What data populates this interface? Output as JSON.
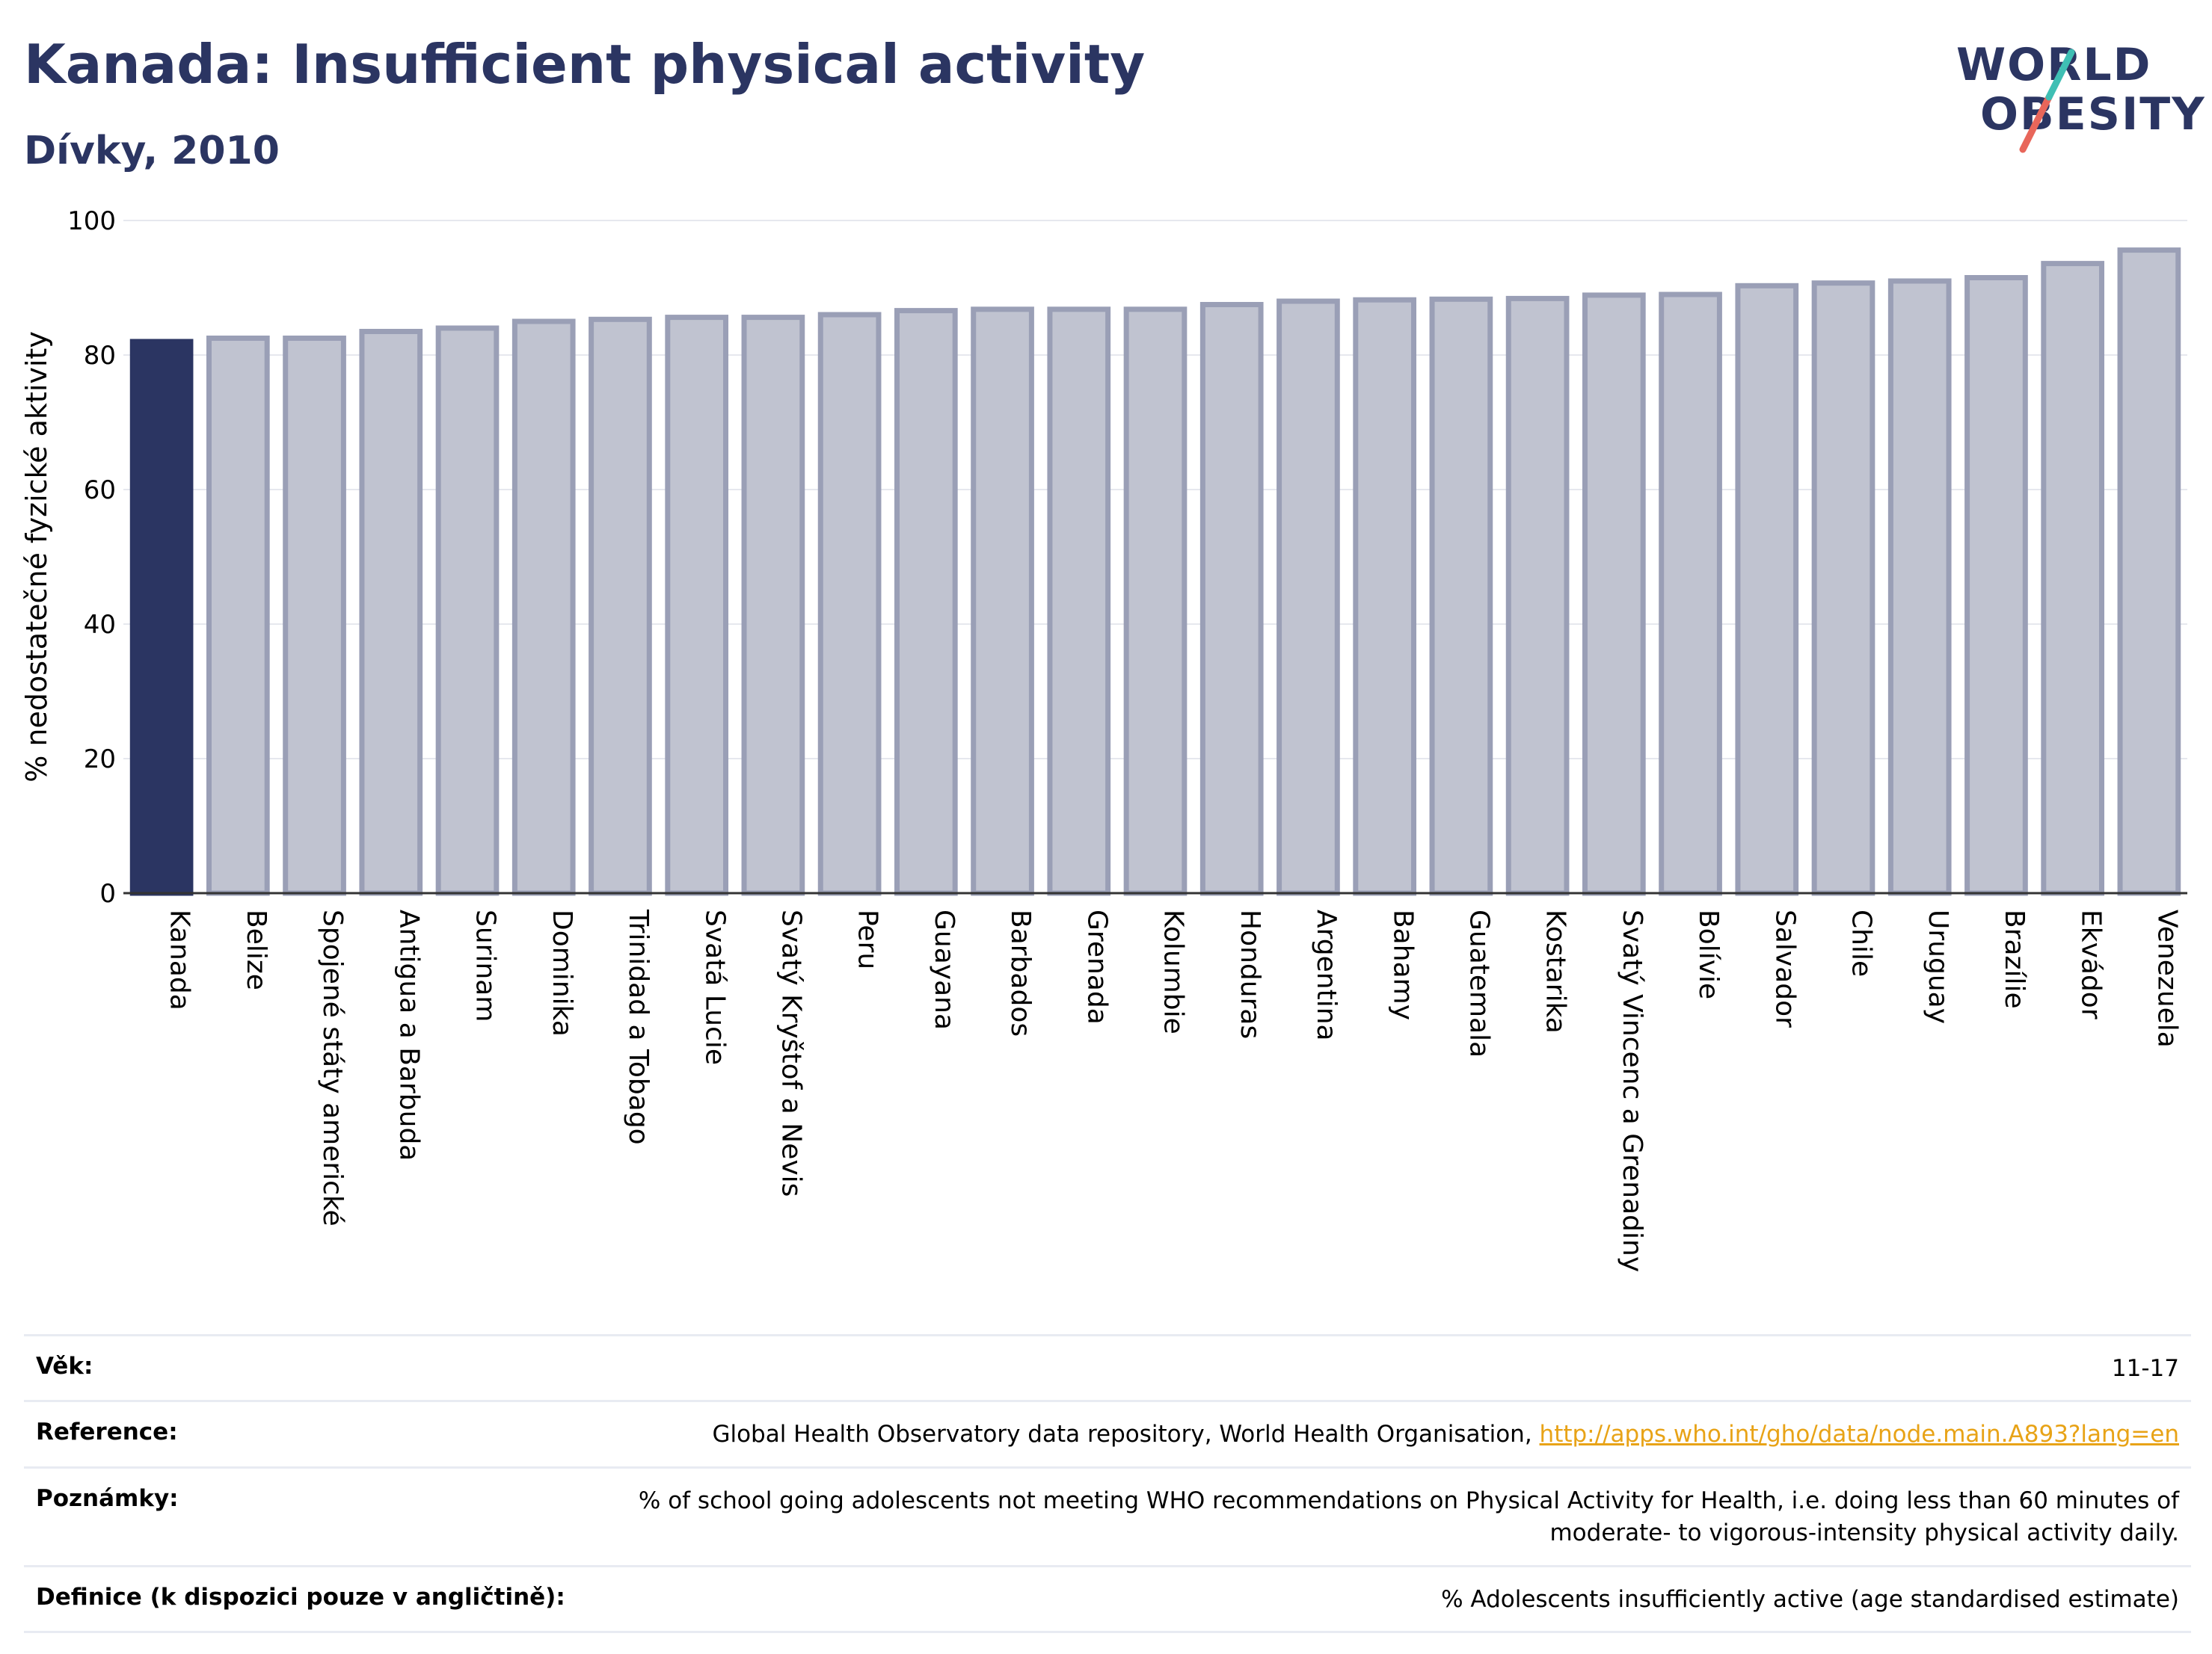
{
  "header": {
    "title": "Kanada: Insufficient physical activity",
    "subtitle": "Dívky, 2010"
  },
  "logo": {
    "line1": "WORLD",
    "line2": "OBESITY"
  },
  "chart_data": {
    "type": "bar",
    "ylabel": "% nedostatečné fyzické aktivity",
    "xlabel": "",
    "ylim": [
      0,
      100
    ],
    "yticks": [
      0,
      20,
      40,
      60,
      80,
      100
    ],
    "grid": true,
    "highlight": "Kanada",
    "colors": {
      "highlight": "#2b3562",
      "bar": "#c0c3d0",
      "bar_edge": "#9a9fb6",
      "grid": "#e6e8ee"
    },
    "categories": [
      "Kanada",
      "Belize",
      "Spojené státy americké",
      "Antigua a Barbuda",
      "Surinam",
      "Dominika",
      "Trinidad a Tobago",
      "Svatá Lucie",
      "Svatý Kryštof a Nevis",
      "Peru",
      "Guayana",
      "Barbados",
      "Grenada",
      "Kolumbie",
      "Honduras",
      "Argentina",
      "Bahamy",
      "Guatemala",
      "Kostarika",
      "Svatý Vincenc a Grenadiny",
      "Bolívie",
      "Salvador",
      "Chile",
      "Uruguay",
      "Brazílie",
      "Ekvádor",
      "Venezuela"
    ],
    "values": [
      82.0,
      82.5,
      82.5,
      83.5,
      84.0,
      85.0,
      85.3,
      85.6,
      85.6,
      86.0,
      86.6,
      86.8,
      86.8,
      86.8,
      87.5,
      88.0,
      88.2,
      88.3,
      88.4,
      88.9,
      89.0,
      90.3,
      90.7,
      91.0,
      91.5,
      93.6,
      95.6
    ]
  },
  "meta": {
    "rows": [
      {
        "key": "Věk:",
        "value": "11-17"
      },
      {
        "key": "Reference:",
        "value": "Global Health Observatory data repository, World Health Organisation, ",
        "link": "http://apps.who.int/gho/data/node.main.A893?lang=en"
      },
      {
        "key": "Poznámky:",
        "value": "% of school going adolescents not meeting WHO recommendations on Physical Activity for Health, i.e. doing less than 60 minutes of moderate- to vigorous-intensity physical activity daily."
      },
      {
        "key": "Definice (k dispozici pouze v angličtině):",
        "value": "% Adolescents insufficiently active (age standardised estimate)"
      }
    ]
  }
}
